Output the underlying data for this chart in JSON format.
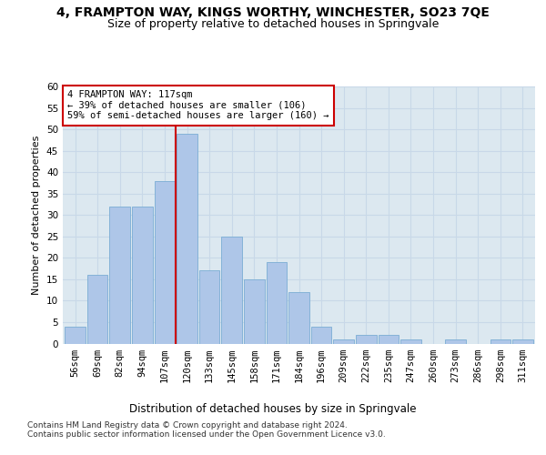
{
  "title1": "4, FRAMPTON WAY, KINGS WORTHY, WINCHESTER, SO23 7QE",
  "title2": "Size of property relative to detached houses in Springvale",
  "xlabel": "Distribution of detached houses by size in Springvale",
  "ylabel": "Number of detached properties",
  "categories": [
    "56sqm",
    "69sqm",
    "82sqm",
    "94sqm",
    "107sqm",
    "120sqm",
    "133sqm",
    "145sqm",
    "158sqm",
    "171sqm",
    "184sqm",
    "196sqm",
    "209sqm",
    "222sqm",
    "235sqm",
    "247sqm",
    "260sqm",
    "273sqm",
    "286sqm",
    "298sqm",
    "311sqm"
  ],
  "values": [
    4,
    16,
    32,
    32,
    38,
    49,
    17,
    25,
    15,
    19,
    12,
    4,
    1,
    2,
    2,
    1,
    0,
    1,
    0,
    1,
    1
  ],
  "bar_color": "#aec6e8",
  "bar_edge_color": "#7aadd4",
  "property_line_x": 4.5,
  "property_line_color": "#cc0000",
  "annotation_text": "4 FRAMPTON WAY: 117sqm\n← 39% of detached houses are smaller (106)\n59% of semi-detached houses are larger (160) →",
  "annotation_box_color": "#ffffff",
  "annotation_box_edge_color": "#cc0000",
  "ylim": [
    0,
    60
  ],
  "yticks": [
    0,
    5,
    10,
    15,
    20,
    25,
    30,
    35,
    40,
    45,
    50,
    55,
    60
  ],
  "grid_color": "#c8d8e8",
  "background_color": "#dce8f0",
  "footer_text": "Contains HM Land Registry data © Crown copyright and database right 2024.\nContains public sector information licensed under the Open Government Licence v3.0.",
  "title1_fontsize": 10,
  "title2_fontsize": 9,
  "xlabel_fontsize": 8.5,
  "ylabel_fontsize": 8,
  "tick_fontsize": 7.5,
  "footer_fontsize": 6.5,
  "ann_fontsize": 7.5
}
